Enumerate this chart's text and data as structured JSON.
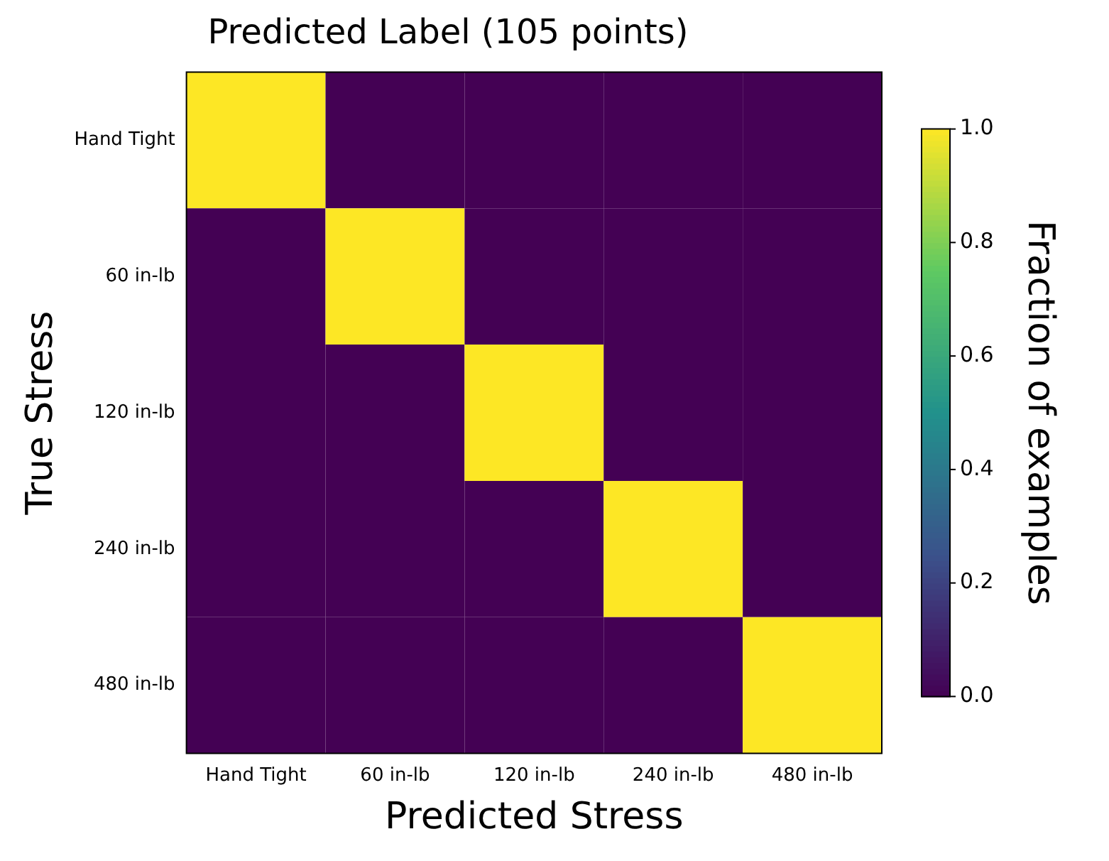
{
  "chart_data": {
    "type": "heatmap",
    "title": "Predicted Label (105 points)",
    "xlabel": "Predicted Stress",
    "ylabel": "True Stress",
    "clabel": "Fraction of examples",
    "categories": [
      "Hand Tight",
      "60 in-lb",
      "120 in-lb",
      "240 in-lb",
      "480 in-lb"
    ],
    "y_categories": [
      "Hand Tight",
      "60 in-lb",
      "120 in-lb",
      "240 in-lb",
      "480 in-lb"
    ],
    "cells": [
      [
        1,
        0,
        0,
        0,
        0
      ],
      [
        0,
        1,
        0,
        0,
        0
      ],
      [
        0,
        0,
        1,
        0,
        0
      ],
      [
        0,
        0,
        0,
        1,
        0
      ],
      [
        0,
        0,
        0,
        0,
        1
      ]
    ],
    "clim": [
      0,
      1
    ],
    "cticks": [
      {
        "value": 0,
        "label": "0.0"
      },
      {
        "value": 0.2,
        "label": "0.2"
      },
      {
        "value": 0.4,
        "label": "0.4"
      },
      {
        "value": 0.6,
        "label": "0.6"
      },
      {
        "value": 0.8,
        "label": "0.8"
      },
      {
        "value": 1,
        "label": "1.0"
      }
    ]
  }
}
